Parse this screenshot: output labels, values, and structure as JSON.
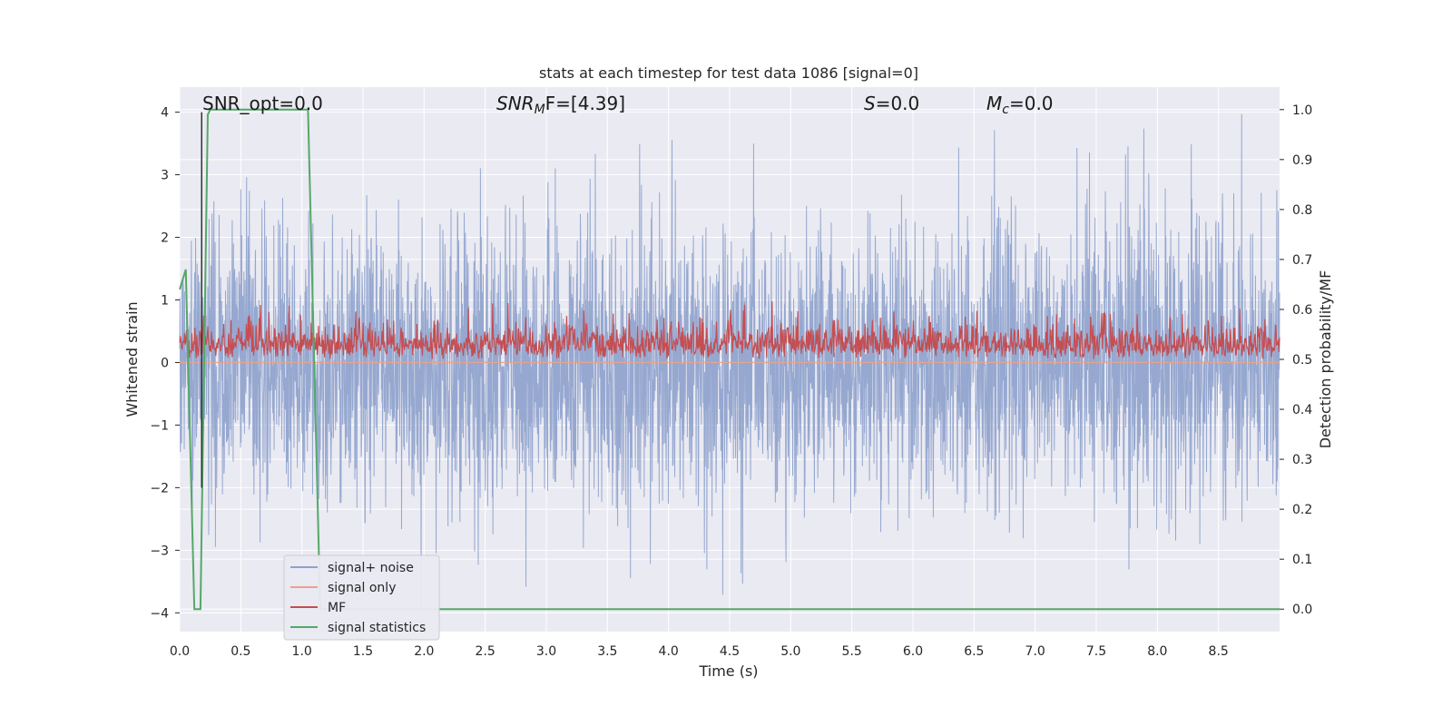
{
  "chart_data": {
    "type": "line",
    "title": "stats at each timestep for test data 1086 [signal=0]",
    "xlabel": "Time (s)",
    "ylabel": "Whitened strain",
    "y2label": "Detection probability/MF",
    "xlim": [
      0.0,
      9.0
    ],
    "ylim": [
      -4.3,
      4.4
    ],
    "y2lim": [
      -0.045,
      1.045
    ],
    "xticks": [
      "0.0",
      "0.5",
      "1.0",
      "1.5",
      "2.0",
      "2.5",
      "3.0",
      "3.5",
      "4.0",
      "4.5",
      "5.0",
      "5.5",
      "6.0",
      "6.5",
      "7.0",
      "7.5",
      "8.0",
      "8.5"
    ],
    "xtick_values": [
      0.0,
      0.5,
      1.0,
      1.5,
      2.0,
      2.5,
      3.0,
      3.5,
      4.0,
      4.5,
      5.0,
      5.5,
      6.0,
      6.5,
      7.0,
      7.5,
      8.0,
      8.5
    ],
    "yticks": [
      "−4",
      "−3",
      "−2",
      "−1",
      "0",
      "1",
      "2",
      "3",
      "4"
    ],
    "ytick_values": [
      -4,
      -3,
      -2,
      -1,
      0,
      1,
      2,
      3,
      4
    ],
    "y2ticks": [
      "0.0",
      "0.1",
      "0.2",
      "0.3",
      "0.4",
      "0.5",
      "0.6",
      "0.7",
      "0.8",
      "0.9",
      "1.0"
    ],
    "y2tick_values": [
      0.0,
      0.1,
      0.2,
      0.3,
      0.4,
      0.5,
      0.6,
      0.7,
      0.8,
      0.9,
      1.0
    ],
    "grid": true,
    "legend_position": "lower-left",
    "annotations": {
      "snr_opt": "SNR_opt=0.0",
      "snr_mf_main": "SNR",
      "snr_mf_sub": "M",
      "snr_mf_rest": "F=[4.39]",
      "s_main": "S",
      "s_rest": "=0.0",
      "mc_main": "M",
      "mc_sub": "c",
      "mc_rest": "=0.0"
    },
    "marker_line_x": 0.18,
    "series": [
      {
        "name": "signal+ noise",
        "axis": "left",
        "color": "#8da1cc",
        "description_range": [
          -3.9,
          4.0
        ]
      },
      {
        "name": "signal only",
        "axis": "left",
        "color": "#e8a48c",
        "values_constant": 0.0
      },
      {
        "name": "MF",
        "axis": "right",
        "color": "#c44e52",
        "range": [
          0.5,
          0.62
        ]
      },
      {
        "name": "signal statistics",
        "axis": "right",
        "color": "#55a868",
        "x": [
          0.0,
          0.05,
          0.12,
          0.17,
          0.23,
          0.25,
          0.3,
          0.5,
          1.0,
          1.05,
          1.1,
          1.15,
          1.2,
          9.0
        ],
        "values": [
          0.64,
          0.68,
          0.0,
          0.0,
          0.99,
          1.0,
          1.0,
          1.0,
          1.0,
          1.0,
          0.5,
          0.0,
          0.0,
          0.0
        ]
      }
    ]
  }
}
